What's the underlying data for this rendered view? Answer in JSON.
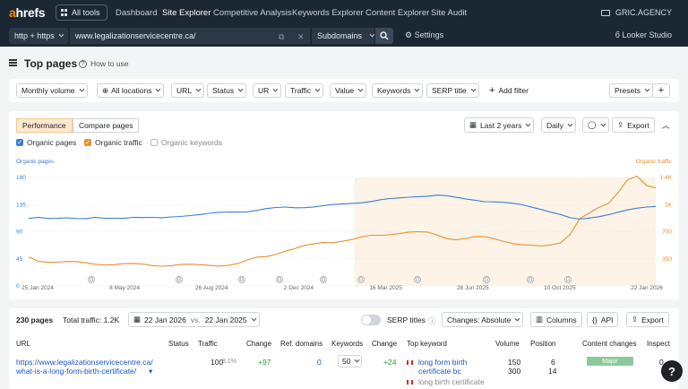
{
  "nav": {
    "logo_a": "a",
    "logo_rest": "hrefs",
    "all_tools": "All tools",
    "links": [
      "Dashboard",
      "Site Explorer",
      "Competitive Analysis",
      "Keywords Explorer",
      "Content Explorer",
      "Site Audit"
    ],
    "active_link": "Site Explorer",
    "account": "GRIC.AGENCY"
  },
  "urlbar": {
    "protocol": "http + https",
    "url": "www.legalizationservicecentre.ca/",
    "scope": "Subdomains",
    "settings": "Settings",
    "looker": "Looker Studio"
  },
  "page": {
    "title": "Top pages",
    "how_to": "How to use"
  },
  "filters": {
    "items": [
      "Monthly volume",
      "All locations",
      "URL",
      "Status",
      "UR",
      "Traffic",
      "Value",
      "Keywords",
      "SERP title"
    ],
    "add_filter": "Add filter",
    "presets": "Presets",
    "plus": "+"
  },
  "performance": {
    "tabs": [
      "Performance",
      "Compare pages"
    ],
    "range": "Last 2 years",
    "interval": "Daily",
    "export": "Export",
    "checks": [
      {
        "label": "Organic pages",
        "checked": true,
        "color": "#3b7dd8"
      },
      {
        "label": "Organic traffic",
        "checked": true,
        "color": "#e8912d"
      },
      {
        "label": "Organic keywords",
        "checked": false,
        "color": "#cccccc"
      }
    ]
  },
  "chart_data": {
    "type": "line",
    "left_axis_label": "Organic pages",
    "right_axis_label": "Organic traffic",
    "left_ticks": [
      "180",
      "135",
      "90",
      "45",
      "0"
    ],
    "right_ticks": [
      "1.4K",
      "1K",
      "700",
      "350",
      ""
    ],
    "left_range": [
      0,
      180
    ],
    "right_range": [
      0,
      1400
    ],
    "x_labels": [
      "25 Jan 2024",
      "8 May 2024",
      "26 Aug 2024",
      "2 Dec 2024",
      "16 Mar 2025",
      "28 Jun 2025",
      "10 Oct 2025",
      "22 Jan 2026"
    ],
    "highlight_from": "16 Mar 2025",
    "series": [
      {
        "name": "Organic pages",
        "color": "#3b7dd8",
        "values": [
          112,
          113,
          111,
          112,
          114,
          113,
          112,
          113,
          111,
          112,
          113,
          115,
          114,
          113,
          112,
          114,
          116,
          118,
          119,
          120,
          121,
          122,
          123,
          124,
          126,
          128,
          129,
          130,
          130,
          131,
          132,
          133,
          134,
          135,
          137,
          139,
          141,
          143,
          144,
          145,
          147,
          149,
          150,
          151,
          149,
          146,
          144,
          143,
          141,
          140,
          138,
          136,
          134,
          131,
          128,
          123,
          118,
          112,
          110,
          113,
          116,
          119,
          122,
          125,
          128,
          131,
          133
        ]
      },
      {
        "name": "Organic traffic",
        "color": "#e8912d",
        "values": [
          370,
          330,
          320,
          310,
          305,
          300,
          295,
          290,
          285,
          280,
          280,
          275,
          275,
          270,
          270,
          270,
          270,
          265,
          265,
          270,
          270,
          275,
          285,
          320,
          360,
          380,
          420,
          460,
          480,
          510,
          530,
          560,
          570,
          590,
          600,
          620,
          640,
          650,
          670,
          690,
          700,
          690,
          680,
          650,
          620,
          610,
          620,
          630,
          620,
          600,
          580,
          560,
          540,
          520,
          500,
          520,
          560,
          680,
          880,
          940,
          1000,
          1050,
          1200,
          1380,
          1430,
          1300,
          1250
        ]
      }
    ]
  },
  "table": {
    "count": "230 pages",
    "traffic_total": "Total traffic: 1.2K",
    "date_a": "22 Jan 2026",
    "vs": "vs.",
    "date_b": "22 Jan 2025",
    "serp_titles": "SERP titles",
    "change_mode": "Changes: Absolute",
    "columns_btn": "Columns",
    "api_btn": "API",
    "export_btn": "Export",
    "headers": [
      "URL",
      "Status",
      "Traffic",
      "Change",
      "Ref. domains",
      "Keywords",
      "Change",
      "Top keyword",
      "Volume",
      "Position",
      "Content changes",
      "Inspect"
    ],
    "row": {
      "url_line1": "https://www.legalizationservicecentre.ca/",
      "url_line2": "what-is-a-long-form-birth-certificate/",
      "traffic": "100",
      "traffic_pct": "8.1%",
      "change": "+97",
      "ref_domains": "0",
      "keywords": "50",
      "kw_change": "+24",
      "top_kw_1a": "long form birth",
      "top_kw_1b": "certificate bc",
      "top_kw_2": "long birth certificate",
      "volume_1": "150",
      "volume_2": "300",
      "position_1": "6",
      "position_2": "14",
      "content_change": "Major",
      "inspect": "0"
    }
  },
  "help": "?"
}
